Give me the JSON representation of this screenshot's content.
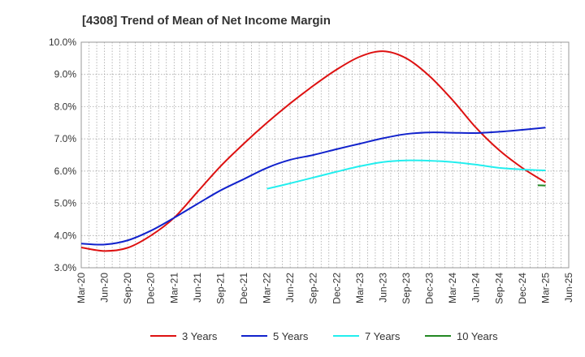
{
  "chart_data": {
    "type": "line",
    "title": "[4308]  Trend of Mean of Net Income Margin",
    "xlabel": "",
    "ylabel": "",
    "ylim": [
      3.0,
      10.0
    ],
    "y_ticks": [
      "3.0%",
      "4.0%",
      "5.0%",
      "6.0%",
      "7.0%",
      "8.0%",
      "9.0%",
      "10.0%"
    ],
    "x_ticks": [
      "Mar-20",
      "Jun-20",
      "Sep-20",
      "Dec-20",
      "Mar-21",
      "Jun-21",
      "Sep-21",
      "Dec-21",
      "Mar-22",
      "Jun-22",
      "Sep-22",
      "Dec-22",
      "Mar-23",
      "Jun-23",
      "Sep-23",
      "Dec-23",
      "Mar-24",
      "Jun-24",
      "Sep-24",
      "Dec-24",
      "Mar-25",
      "Jun-25"
    ],
    "grid": true,
    "legend_position": "bottom",
    "series": [
      {
        "name": "3 Years",
        "color": "#dd1111",
        "x": [
          "Mar-20",
          "Jun-20",
          "Sep-20",
          "Dec-20",
          "Mar-21",
          "Jun-21",
          "Sep-21",
          "Dec-21",
          "Mar-22",
          "Jun-22",
          "Sep-22",
          "Dec-22",
          "Mar-23",
          "Jun-23",
          "Sep-23",
          "Dec-23",
          "Mar-24",
          "Jun-24",
          "Sep-24",
          "Dec-24",
          "Mar-25"
        ],
        "values": [
          3.63,
          3.52,
          3.62,
          4.0,
          4.55,
          5.35,
          6.15,
          6.85,
          7.5,
          8.1,
          8.65,
          9.15,
          9.55,
          9.72,
          9.5,
          8.95,
          8.2,
          7.35,
          6.65,
          6.1,
          5.65
        ]
      },
      {
        "name": "5 Years",
        "color": "#1122cc",
        "x": [
          "Mar-20",
          "Jun-20",
          "Sep-20",
          "Dec-20",
          "Mar-21",
          "Jun-21",
          "Sep-21",
          "Dec-21",
          "Mar-22",
          "Jun-22",
          "Sep-22",
          "Dec-22",
          "Mar-23",
          "Jun-23",
          "Sep-23",
          "Dec-23",
          "Mar-24",
          "Jun-24",
          "Sep-24",
          "Dec-24",
          "Mar-25"
        ],
        "values": [
          3.75,
          3.72,
          3.85,
          4.15,
          4.55,
          4.98,
          5.4,
          5.75,
          6.1,
          6.35,
          6.5,
          6.68,
          6.85,
          7.02,
          7.15,
          7.2,
          7.19,
          7.18,
          7.22,
          7.28,
          7.35
        ]
      },
      {
        "name": "7 Years",
        "color": "#22eeee",
        "x": [
          "Mar-22",
          "Jun-22",
          "Sep-22",
          "Dec-22",
          "Mar-23",
          "Jun-23",
          "Sep-23",
          "Dec-23",
          "Mar-24",
          "Jun-24",
          "Sep-24",
          "Dec-24",
          "Mar-25"
        ],
        "values": [
          5.45,
          5.62,
          5.8,
          5.98,
          6.15,
          6.28,
          6.33,
          6.32,
          6.28,
          6.2,
          6.1,
          6.05,
          6.02
        ]
      },
      {
        "name": "10 Years",
        "color": "#228822",
        "x": [
          "Feb-25",
          "Mar-25"
        ],
        "values": [
          5.56,
          5.55
        ]
      }
    ]
  }
}
